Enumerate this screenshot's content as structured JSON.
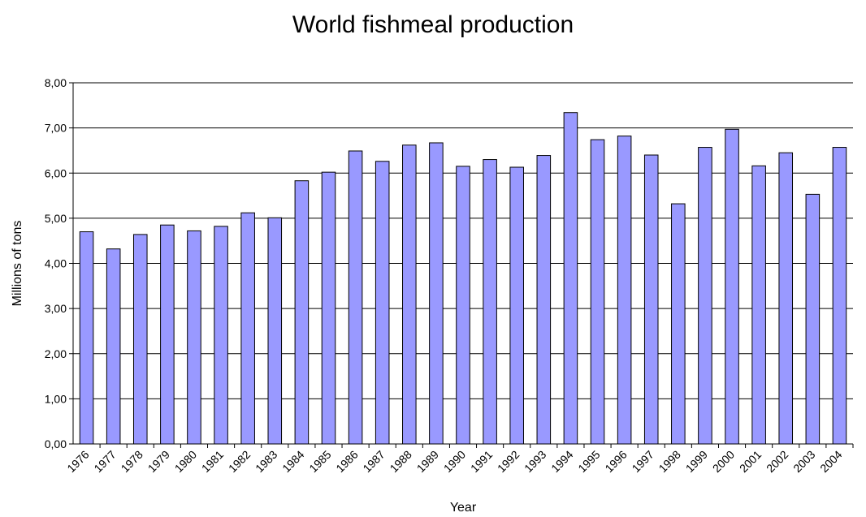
{
  "chart_data": {
    "type": "bar",
    "title": "World fishmeal production",
    "xlabel": "Year",
    "ylabel": "Millions of tons",
    "ylim": [
      0,
      8
    ],
    "yticks": [
      "0,00",
      "1,00",
      "2,00",
      "3,00",
      "4,00",
      "5,00",
      "6,00",
      "7,00",
      "8,00"
    ],
    "grid": true,
    "categories": [
      "1976",
      "1977",
      "1978",
      "1979",
      "1980",
      "1981",
      "1982",
      "1983",
      "1984",
      "1985",
      "1986",
      "1987",
      "1988",
      "1989",
      "1990",
      "1991",
      "1992",
      "1993",
      "1994",
      "1995",
      "1996",
      "1997",
      "1998",
      "1999",
      "2000",
      "2001",
      "2002",
      "2003",
      "2004"
    ],
    "values": [
      4.7,
      4.32,
      4.64,
      4.85,
      4.72,
      4.82,
      5.12,
      5.01,
      5.83,
      6.02,
      6.49,
      6.26,
      6.62,
      6.67,
      6.15,
      6.3,
      6.13,
      6.39,
      7.34,
      6.74,
      6.82,
      6.4,
      5.32,
      6.57,
      6.97,
      6.16,
      6.45,
      5.53,
      6.57
    ],
    "bar_color": "#9999ff",
    "bar_edge_color": "#000000"
  }
}
